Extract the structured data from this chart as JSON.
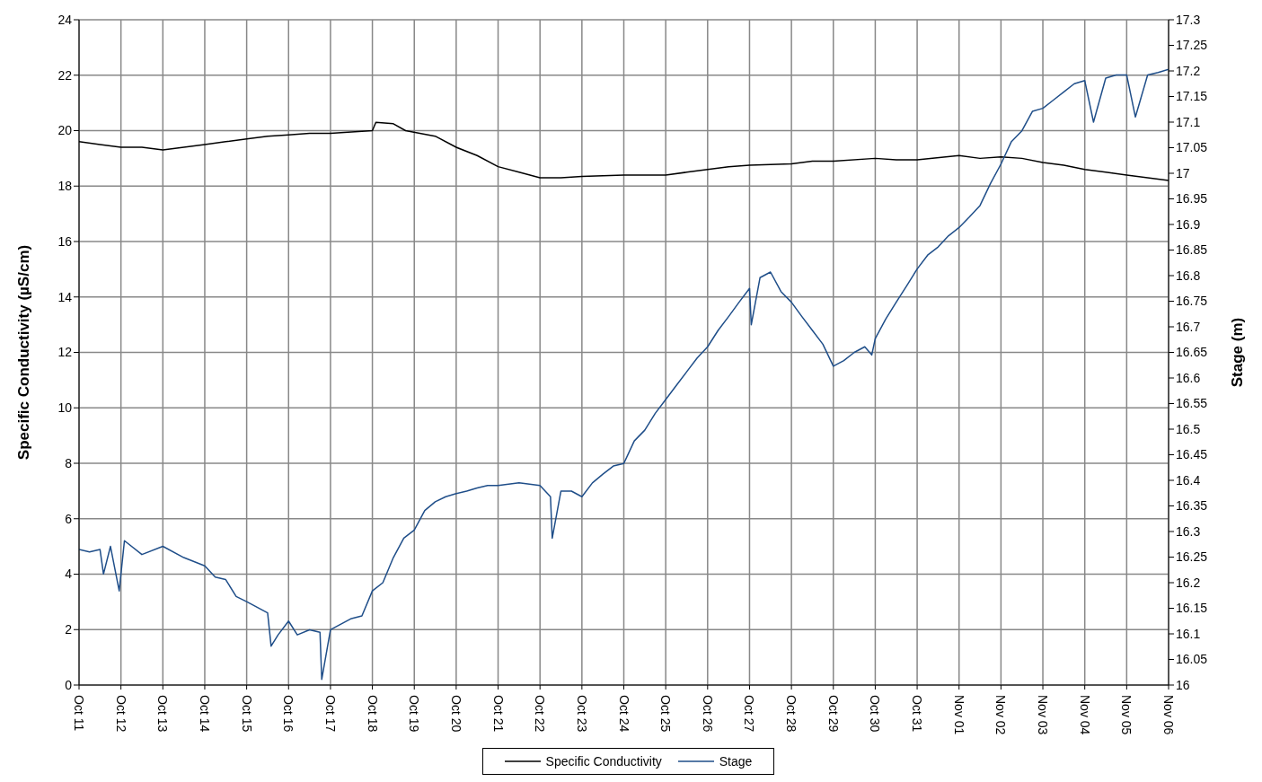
{
  "chart_data": {
    "type": "line",
    "xlabel": null,
    "ylabel": "Specific Conductivity  (µS/cm)",
    "y2label": "Stage (m)",
    "xlim": [
      "--10-11",
      "--11-06"
    ],
    "xticks": [
      {
        "value": "--10-11",
        "label": "Oct 11"
      },
      {
        "value": "--10-12",
        "label": "Oct 12"
      },
      {
        "value": "--10-13",
        "label": "Oct 13"
      },
      {
        "value": "--10-14",
        "label": "Oct 14"
      },
      {
        "value": "--10-15",
        "label": "Oct 15"
      },
      {
        "value": "--10-16",
        "label": "Oct 16"
      },
      {
        "value": "--10-17",
        "label": "Oct 17"
      },
      {
        "value": "--10-18",
        "label": "Oct 18"
      },
      {
        "value": "--10-19",
        "label": "Oct 19"
      },
      {
        "value": "--10-20",
        "label": "Oct 20"
      },
      {
        "value": "--10-21",
        "label": "Oct 21"
      },
      {
        "value": "--10-22",
        "label": "Oct 22"
      },
      {
        "value": "--10-23",
        "label": "Oct 23"
      },
      {
        "value": "--10-24",
        "label": "Oct 24"
      },
      {
        "value": "--10-25",
        "label": "Oct 25"
      },
      {
        "value": "--10-26",
        "label": "Oct 26"
      },
      {
        "value": "--10-27",
        "label": "Oct 27"
      },
      {
        "value": "--10-28",
        "label": "Oct 28"
      },
      {
        "value": "--10-29",
        "label": "Oct 29"
      },
      {
        "value": "--10-30",
        "label": "Oct 30"
      },
      {
        "value": "--10-31",
        "label": "Oct 31"
      },
      {
        "value": "--11-01",
        "label": "Nov 01"
      },
      {
        "value": "--11-02",
        "label": "Nov 02"
      },
      {
        "value": "--11-03",
        "label": "Nov 03"
      },
      {
        "value": "--11-04",
        "label": "Nov 04"
      },
      {
        "value": "--11-05",
        "label": "Nov 05"
      },
      {
        "value": "--11-06",
        "label": "Nov 06"
      }
    ],
    "ylim": [
      0,
      24
    ],
    "yticks": [
      0,
      2,
      4,
      6,
      8,
      10,
      12,
      14,
      16,
      18,
      20,
      22,
      24
    ],
    "y2lim": [
      16,
      17.3
    ],
    "y2ticks": [
      16,
      16.05,
      16.1,
      16.15,
      16.2,
      16.25,
      16.3,
      16.35,
      16.4,
      16.45,
      16.5,
      16.55,
      16.6,
      16.65,
      16.7,
      16.75,
      16.8,
      16.85,
      16.9,
      16.95,
      17,
      17.05,
      17.1,
      17.15,
      17.2,
      17.25,
      17.3
    ],
    "grid": true,
    "legend": "bottom",
    "marker": "none",
    "line_style": "solid",
    "series": [
      {
        "name": "Specific Conductivity",
        "color": "#000000",
        "x": [
          "--10-11T00:00",
          "--10-11T12:00",
          "--10-12T00:00",
          "--10-12T12:00",
          "--10-13T00:00",
          "--10-13T12:00",
          "--10-14T00:00",
          "--10-14T12:00",
          "--10-15T00:00",
          "--10-15T12:00",
          "--10-16T00:00",
          "--10-16T12:00",
          "--10-17T00:00",
          "--10-17T12:00",
          "--10-18T00:00",
          "--10-18T02:00",
          "--10-18T12:00",
          "--10-18T19:00",
          "--10-19T12:00",
          "--10-20T00:00",
          "--10-20T12:00",
          "--10-21T00:00",
          "--10-21T12:00",
          "--10-22T00:00",
          "--10-22T12:00",
          "--10-23T00:00",
          "--10-24T00:00",
          "--10-25T00:00",
          "--10-25T12:00",
          "--10-26T00:00",
          "--10-26T12:00",
          "--10-27T00:00",
          "--10-28T00:00",
          "--10-28T12:00",
          "--10-29T00:00",
          "--10-30T00:00",
          "--10-30T12:00",
          "--10-31T00:00",
          "--11-01T00:00",
          "--11-01T12:00",
          "--11-02T00:00",
          "--11-02T12:00",
          "--11-03T00:00",
          "--11-03T12:00",
          "--11-04T00:00",
          "--11-04T12:00",
          "--11-05T00:00",
          "--11-05T12:00",
          "--11-06T00:00"
        ],
        "values": [
          19.6,
          19.5,
          19.4,
          19.4,
          19.3,
          19.4,
          19.5,
          19.6,
          19.7,
          19.8,
          19.85,
          19.9,
          19.9,
          19.95,
          20.0,
          20.3,
          20.25,
          20.0,
          19.8,
          19.4,
          19.1,
          18.7,
          18.5,
          18.3,
          18.3,
          18.35,
          18.4,
          18.4,
          18.5,
          18.6,
          18.7,
          18.75,
          18.8,
          18.9,
          18.9,
          19.0,
          18.95,
          18.95,
          19.1,
          19.0,
          19.05,
          19.0,
          18.85,
          18.75,
          18.6,
          18.5,
          18.4,
          18.3,
          18.2
        ]
      },
      {
        "name": "Stage",
        "color": "#1f4e89",
        "axis": "y2",
        "x": [
          "--10-11T00:00",
          "--10-11T06:00",
          "--10-11T12:00",
          "--10-11T14:00",
          "--10-11T18:00",
          "--10-11T23:00",
          "--10-12T02:00",
          "--10-12T12:00",
          "--10-13T00:00",
          "--10-13T12:00",
          "--10-14T00:00",
          "--10-14T06:00",
          "--10-14T12:00",
          "--10-14T18:00",
          "--10-15T00:00",
          "--10-15T06:00",
          "--10-15T12:00",
          "--10-15T14:00",
          "--10-15T18:00",
          "--10-16T00:00",
          "--10-16T05:00",
          "--10-16T12:00",
          "--10-16T18:00",
          "--10-16T19:00",
          "--10-17T00:00",
          "--10-17T06:00",
          "--10-17T12:00",
          "--10-17T18:00",
          "--10-18T00:00",
          "--10-18T06:00",
          "--10-18T12:00",
          "--10-18T18:00",
          "--10-19T00:00",
          "--10-19T06:00",
          "--10-19T12:00",
          "--10-19T18:00",
          "--10-20T00:00",
          "--10-20T06:00",
          "--10-20T12:00",
          "--10-20T18:00",
          "--10-21T00:00",
          "--10-21T12:00",
          "--10-22T00:00",
          "--10-22T06:00",
          "--10-22T07:00",
          "--10-22T12:00",
          "--10-22T18:00",
          "--10-23T00:00",
          "--10-23T06:00",
          "--10-23T12:00",
          "--10-23T18:00",
          "--10-24T00:00",
          "--10-24T06:00",
          "--10-24T12:00",
          "--10-24T18:00",
          "--10-25T00:00",
          "--10-25T06:00",
          "--10-25T12:00",
          "--10-25T18:00",
          "--10-26T00:00",
          "--10-26T06:00",
          "--10-26T12:00",
          "--10-26T18:00",
          "--10-27T00:00",
          "--10-27T01:00",
          "--10-27T06:00",
          "--10-27T12:00",
          "--10-27T18:00",
          "--10-28T00:00",
          "--10-28T06:00",
          "--10-28T12:00",
          "--10-28T18:00",
          "--10-29T00:00",
          "--10-29T06:00",
          "--10-29T12:00",
          "--10-29T18:00",
          "--10-29T22:00",
          "--10-30T00:00",
          "--10-30T06:00",
          "--10-30T12:00",
          "--10-30T18:00",
          "--10-31T00:00",
          "--10-31T06:00",
          "--10-31T12:00",
          "--10-31T18:00",
          "--11-01T00:00",
          "--11-01T06:00",
          "--11-01T12:00",
          "--11-01T18:00",
          "--11-02T00:00",
          "--11-02T06:00",
          "--11-02T12:00",
          "--11-02T18:00",
          "--11-03T00:00",
          "--11-03T06:00",
          "--11-03T12:00",
          "--11-03T18:00",
          "--11-04T00:00",
          "--11-04T05:00",
          "--11-04T12:00",
          "--11-04T18:00",
          "--11-05T00:00",
          "--11-05T05:00",
          "--11-05T12:00",
          "--11-05T18:00",
          "--11-06T00:00"
        ],
        "values": [
          16.265,
          16.26,
          16.265,
          16.217,
          16.271,
          16.184,
          16.282,
          16.255,
          16.271,
          16.249,
          16.233,
          16.211,
          16.206,
          16.173,
          16.163,
          16.152,
          16.141,
          16.076,
          16.098,
          16.125,
          16.098,
          16.108,
          16.103,
          16.011,
          16.108,
          16.119,
          16.13,
          16.135,
          16.184,
          16.2,
          16.249,
          16.287,
          16.303,
          16.341,
          16.358,
          16.368,
          16.374,
          16.379,
          16.385,
          16.39,
          16.39,
          16.395,
          16.39,
          16.368,
          16.287,
          16.379,
          16.379,
          16.368,
          16.395,
          16.412,
          16.428,
          16.433,
          16.477,
          16.498,
          16.531,
          16.558,
          16.585,
          16.612,
          16.639,
          16.661,
          16.693,
          16.72,
          16.748,
          16.775,
          16.704,
          16.796,
          16.807,
          16.769,
          16.748,
          16.72,
          16.693,
          16.666,
          16.623,
          16.634,
          16.65,
          16.661,
          16.645,
          16.677,
          16.715,
          16.748,
          16.78,
          16.813,
          16.84,
          16.856,
          16.878,
          16.894,
          16.915,
          16.937,
          16.98,
          17.018,
          17.062,
          17.083,
          17.121,
          17.127,
          17.143,
          17.159,
          17.175,
          17.181,
          17.1,
          17.186,
          17.192,
          17.192,
          17.11,
          17.192,
          17.197,
          17.203
        ]
      }
    ]
  }
}
